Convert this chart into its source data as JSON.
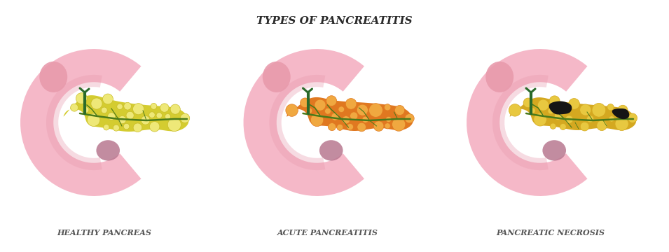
{
  "title": "TYPES OF PANCREATITIS",
  "title_fontsize": 11,
  "title_style": "italic",
  "title_weight": "bold",
  "title_color": "#2a2a2a",
  "labels": [
    "HEALTHY PANCREAS",
    "ACUTE PANCREATITIS",
    "PANCREATIC NECROSIS"
  ],
  "label_fontsize": 8,
  "label_color": "#555555",
  "label_style": "italic",
  "label_weight": "bold",
  "bg_color": "#ffffff",
  "stomach_color": "#F5B8C8",
  "stomach_shadow": "#E89AAC",
  "stomach_dark": "#B87890",
  "duct_top_color": "#2A6A2A",
  "vein_color": "#4A7A1A",
  "healthy_main": "#D4CC30",
  "healthy_light": "#E8E060",
  "healthy_lobule": "#EEE878",
  "healthy_lobule_edge": "#C8BC28",
  "acute_main": "#E07820",
  "acute_light": "#F0A840",
  "acute_inner": "#D4B830",
  "necrosis_main": "#D4A820",
  "necrosis_light": "#E8C840",
  "necrosis_inner": "#C8A028",
  "necrosis_dark": "#151515",
  "vein_dark": "#5A6A10"
}
